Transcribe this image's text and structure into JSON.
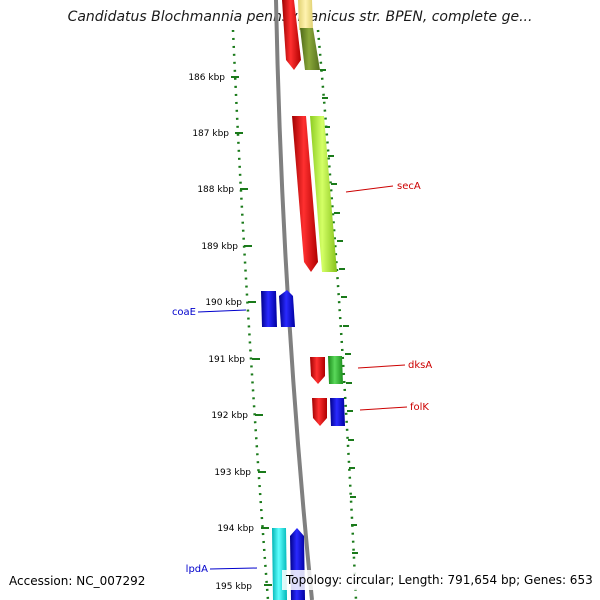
{
  "title": "Candidatus Blochmannia pennsylvanicus str. BPEN, complete ge...",
  "accession": "Accession: NC_007292",
  "topology": "Topology: circular; Length: 791,654 bp; Genes: 653",
  "colors": {
    "backbone": "#808080",
    "ticks": "#1a7a1a",
    "red_gene": "#ff0000",
    "blue_gene": "#0000ee",
    "red_label": "#cc0000",
    "blue_label": "#0000cc"
  },
  "ticks": [
    "186 kbp",
    "187 kbp",
    "188 kbp",
    "189 kbp",
    "190 kbp",
    "191 kbp",
    "192 kbp",
    "193 kbp",
    "194 kbp",
    "195 kbp"
  ],
  "gene_labels": [
    {
      "name": "secA",
      "color": "red"
    },
    {
      "name": "coaE",
      "color": "blue"
    },
    {
      "name": "dksA",
      "color": "red"
    },
    {
      "name": "folK",
      "color": "red"
    },
    {
      "name": "lpdA",
      "color": "blue"
    }
  ]
}
